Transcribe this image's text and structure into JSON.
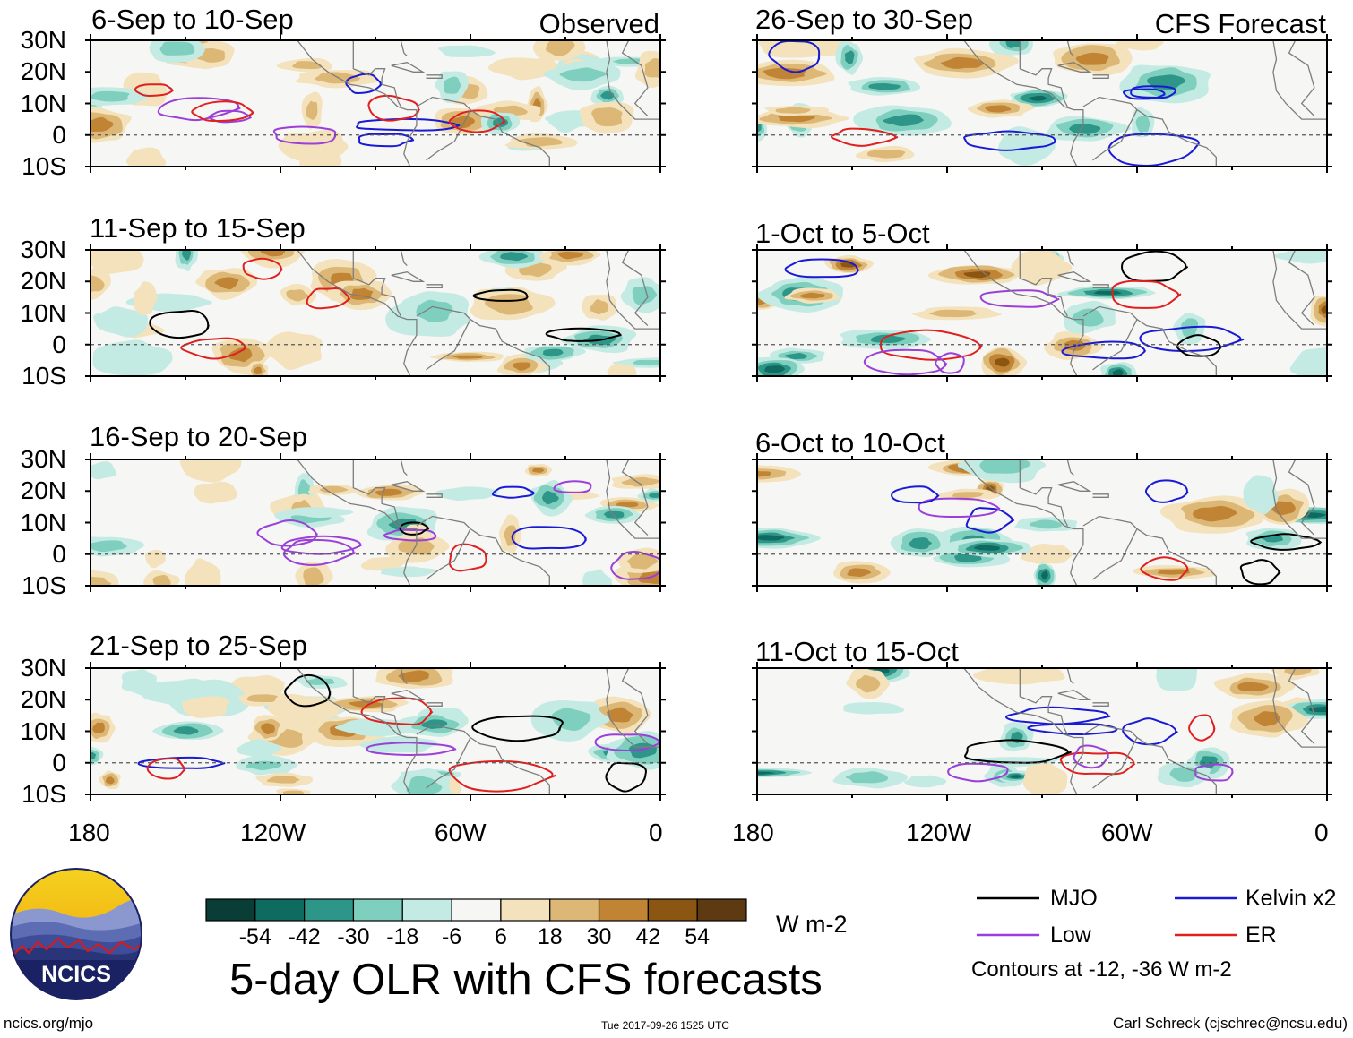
{
  "chart_data": {
    "type": "heatmap",
    "title": "5-day OLR with CFS forecasts",
    "columns": [
      {
        "heading": "Observed",
        "panels": [
          {
            "label": "6-Sep to 10-Sep"
          },
          {
            "label": "11-Sep to 15-Sep"
          },
          {
            "label": "16-Sep to 20-Sep"
          },
          {
            "label": "21-Sep to 25-Sep"
          }
        ]
      },
      {
        "heading": "CFS Forecast",
        "panels": [
          {
            "label": "26-Sep to 30-Sep"
          },
          {
            "label": "1-Oct to 5-Oct"
          },
          {
            "label": "6-Oct to 10-Oct"
          },
          {
            "label": "11-Oct to 15-Oct"
          }
        ]
      }
    ],
    "lat_ticks": [
      "30N",
      "20N",
      "10N",
      "0",
      "10S"
    ],
    "lat_values": [
      30,
      20,
      10,
      0,
      -10
    ],
    "lon_ticks": [
      "180",
      "120W",
      "60W",
      "0"
    ],
    "lon_values": [
      -180,
      -120,
      -60,
      0
    ],
    "xlim": [
      -180,
      0
    ],
    "ylim": [
      -10,
      30
    ],
    "colorbar": {
      "tick_labels": [
        "-54",
        "-42",
        "-30",
        "-18",
        "-6",
        "6",
        "18",
        "30",
        "42",
        "54"
      ],
      "colors": [
        "#0a3d36",
        "#0f6b60",
        "#2e9688",
        "#7fcfbf",
        "#c4ebe3",
        "#f6f6f4",
        "#f3e2bc",
        "#dcb775",
        "#c08434",
        "#8b5512",
        "#5e3a12"
      ],
      "units": "W m-2"
    },
    "legend": [
      {
        "label": "MJO",
        "color": "#000000"
      },
      {
        "label": "Kelvin x2",
        "color": "#1a1ad6"
      },
      {
        "label": "Low",
        "color": "#9b3fd9"
      },
      {
        "label": "ER",
        "color": "#e01f1f"
      }
    ],
    "contour_note": "Contours at -12, -36 W m-2"
  },
  "footer": {
    "left": "ncics.org/mjo",
    "center": "Tue 2017-09-26 1525 UTC",
    "right": "Carl Schreck (cjschrec@ncsu.edu)"
  },
  "logo": {
    "text": "NCICS"
  }
}
